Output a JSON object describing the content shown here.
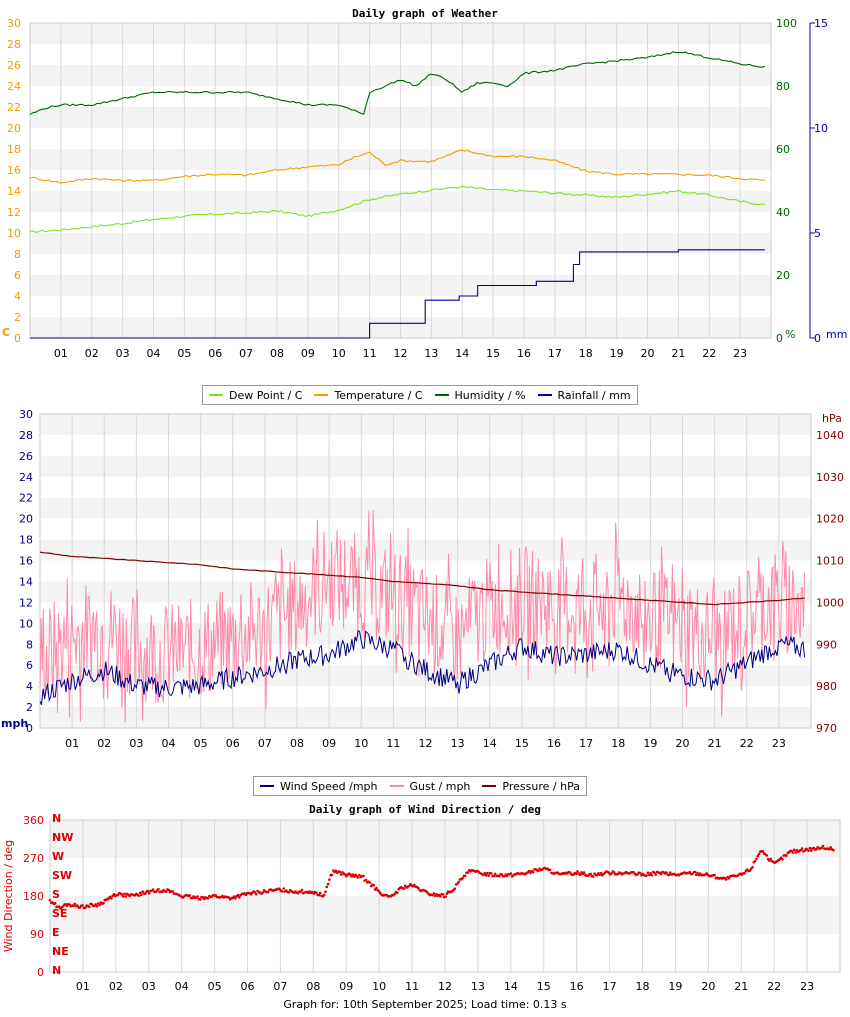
{
  "chart_data": [
    {
      "type": "line",
      "title": "Daily graph of Weather",
      "x_ticks": [
        "01",
        "02",
        "03",
        "04",
        "05",
        "06",
        "07",
        "08",
        "09",
        "10",
        "11",
        "12",
        "13",
        "14",
        "15",
        "16",
        "17",
        "18",
        "19",
        "20",
        "21",
        "22",
        "23"
      ],
      "xlim": [
        0,
        24
      ],
      "left_axis": {
        "unit": "C",
        "range": [
          0,
          30
        ],
        "ticks": [
          "0",
          "2",
          "4",
          "6",
          "8",
          "10",
          "12",
          "14",
          "16",
          "18",
          "20",
          "22",
          "24",
          "26",
          "28",
          "30"
        ],
        "color": "#e6a100"
      },
      "right_axis_1": {
        "unit": "%",
        "range": [
          0,
          100
        ],
        "ticks": [
          "0",
          "20",
          "40",
          "60",
          "80",
          "100"
        ],
        "color": "#006400"
      },
      "right_axis_2": {
        "unit": "mm",
        "range": [
          0,
          15
        ],
        "ticks": [
          "0",
          "5",
          "10",
          "15"
        ],
        "color": "#0000aa"
      },
      "grid": true,
      "legend": [
        "Dew Point / C",
        "Temperature / C",
        "Humidity / %",
        "Rainfall / mm"
      ],
      "series": [
        {
          "name": "Dew Point / C",
          "axis": "left",
          "color": "#80e020",
          "x": [
            0,
            1,
            2,
            3,
            4,
            5,
            6,
            7,
            8,
            9,
            10,
            10.5,
            11,
            12,
            13,
            14,
            15,
            16,
            17,
            18,
            19,
            20,
            21,
            22,
            23,
            23.8
          ],
          "values": [
            10.1,
            10.3,
            10.6,
            10.9,
            11.3,
            11.6,
            11.8,
            11.9,
            12.1,
            11.6,
            12.2,
            12.7,
            13.2,
            13.7,
            14.1,
            14.4,
            14.1,
            14.0,
            13.8,
            13.6,
            13.4,
            13.7,
            14.0,
            13.6,
            13.0,
            12.7
          ]
        },
        {
          "name": "Temperature / C",
          "axis": "left",
          "color": "#f0a000",
          "x": [
            0,
            1,
            2,
            3,
            4,
            5,
            6,
            7,
            8,
            9,
            10,
            10.5,
            11,
            11.5,
            12,
            13,
            14,
            15,
            16,
            17,
            17.5,
            18,
            19,
            20,
            21,
            22,
            23,
            23.8
          ],
          "values": [
            15.3,
            14.8,
            15.2,
            15.0,
            15.0,
            15.4,
            15.6,
            15.5,
            16.0,
            16.3,
            16.5,
            17.2,
            17.7,
            16.5,
            16.9,
            16.8,
            17.9,
            17.3,
            17.3,
            16.9,
            16.4,
            15.9,
            15.6,
            15.6,
            15.6,
            15.5,
            15.2,
            15.0
          ]
        },
        {
          "name": "Humidity / %",
          "axis": "right1",
          "color": "#006400",
          "x": [
            0,
            0.5,
            1,
            2,
            3,
            4,
            5,
            6,
            7,
            8,
            9,
            10,
            10.8,
            11,
            12,
            12.5,
            13,
            13.5,
            14,
            14.5,
            15,
            15.5,
            16,
            17,
            18,
            19,
            20,
            21,
            22,
            23,
            23.8
          ],
          "values": [
            71,
            73,
            74,
            74,
            76,
            78,
            78,
            78,
            78,
            76,
            74,
            74,
            71,
            78,
            82,
            80,
            84,
            82,
            78,
            81,
            81,
            80,
            84,
            85,
            87,
            88,
            89,
            91,
            89,
            87,
            86
          ]
        },
        {
          "name": "Rainfall / mm",
          "axis": "right2",
          "color": "#000099",
          "x": [
            0,
            10.9,
            11,
            12.4,
            12.8,
            13.9,
            14.5,
            16.4,
            17.6,
            17.8,
            20.3,
            21,
            23.8
          ],
          "values": [
            0,
            0,
            0.7,
            0.7,
            1.8,
            2.0,
            2.5,
            2.7,
            3.5,
            4.1,
            4.1,
            4.2,
            4.2
          ]
        }
      ]
    },
    {
      "type": "line",
      "title": "",
      "x_ticks": [
        "01",
        "02",
        "03",
        "04",
        "05",
        "06",
        "07",
        "08",
        "09",
        "10",
        "11",
        "12",
        "13",
        "14",
        "15",
        "16",
        "17",
        "18",
        "19",
        "20",
        "21",
        "22",
        "23"
      ],
      "xlim": [
        0,
        24
      ],
      "left_axis": {
        "unit": "mph",
        "range": [
          0,
          30
        ],
        "ticks": [
          "0",
          "2",
          "4",
          "6",
          "8",
          "10",
          "12",
          "14",
          "16",
          "18",
          "20",
          "22",
          "24",
          "26",
          "28",
          "30"
        ],
        "color": "#000080"
      },
      "right_axis": {
        "unit": "hPa",
        "range": [
          970,
          1045
        ],
        "ticks": [
          "970",
          "980",
          "990",
          "1000",
          "1010",
          "1020",
          "1030",
          "1040"
        ],
        "color": "#800000"
      },
      "grid": true,
      "legend": [
        "Wind Speed /mph",
        "Gust / mph",
        "Pressure / hPa"
      ],
      "series": [
        {
          "name": "Wind Speed /mph",
          "axis": "left",
          "color": "#000080",
          "x": [
            0,
            1,
            2,
            3,
            4,
            5,
            6,
            7,
            8,
            9,
            10,
            11,
            12,
            13,
            14,
            15,
            16,
            17,
            18,
            19,
            20,
            21,
            22,
            23,
            23.8
          ],
          "values": [
            3,
            4.5,
            5.5,
            4,
            3.8,
            4,
            4.8,
            5.5,
            6.5,
            7,
            8.5,
            7.5,
            5.5,
            4.2,
            6,
            7.8,
            6.8,
            7,
            7.5,
            6,
            5,
            4.5,
            6.2,
            8,
            7.5
          ]
        },
        {
          "name": "Gust / mph",
          "axis": "left",
          "color": "#ff8aa8",
          "x": [
            0,
            1,
            2,
            3,
            4,
            5,
            6,
            7,
            8,
            9,
            10,
            11,
            12,
            13,
            14,
            15,
            16,
            17,
            18,
            19,
            20,
            21,
            22,
            23,
            23.8
          ],
          "values": [
            7,
            9,
            10,
            8,
            7.5,
            8,
            9,
            10,
            12,
            15,
            14,
            13,
            11,
            9,
            12,
            13,
            12,
            12,
            13,
            11,
            10,
            9,
            11,
            13,
            12
          ]
        },
        {
          "name": "Pressure / hPa",
          "axis": "right",
          "color": "#800000",
          "x": [
            0,
            1,
            2,
            3,
            4,
            5,
            6,
            7,
            8,
            9,
            10,
            11,
            12,
            13,
            14,
            15,
            16,
            17,
            18,
            19,
            20,
            21,
            22,
            23,
            23.8
          ],
          "values": [
            1012,
            1011,
            1010.5,
            1010,
            1009.5,
            1009,
            1008,
            1007.5,
            1007,
            1006.5,
            1006,
            1005,
            1004.5,
            1004,
            1003,
            1002.5,
            1002,
            1001.5,
            1001,
            1000.5,
            1000,
            999.5,
            1000,
            1000.5,
            1001
          ]
        }
      ]
    },
    {
      "type": "scatter",
      "title": "Daily graph of Wind Direction / deg",
      "x_ticks": [
        "01",
        "02",
        "03",
        "04",
        "05",
        "06",
        "07",
        "08",
        "09",
        "10",
        "11",
        "12",
        "13",
        "14",
        "15",
        "16",
        "17",
        "18",
        "19",
        "20",
        "21",
        "22",
        "23"
      ],
      "xlim": [
        0,
        24
      ],
      "ylabel": "Wind Direction / deg",
      "ylim": [
        0,
        360
      ],
      "y_ticks": [
        "0",
        "90",
        "180",
        "270",
        "360"
      ],
      "compass": [
        "N",
        "NE",
        "E",
        "SE",
        "S",
        "SW",
        "W",
        "NW",
        "N"
      ],
      "grid": true,
      "color": "#dd0000",
      "series": [
        {
          "name": "",
          "x": [
            0,
            0.3,
            0.5,
            1,
            1.5,
            2,
            2.5,
            3,
            3.5,
            4,
            4.5,
            5,
            5.5,
            6,
            6.5,
            7,
            7.5,
            8,
            8.3,
            8.6,
            9,
            9.5,
            10,
            10.3,
            10.7,
            11,
            11.5,
            12,
            12.3,
            12.7,
            13,
            13.5,
            14,
            14.5,
            15,
            15.5,
            16,
            16.5,
            17,
            17.5,
            18,
            18.5,
            19,
            19.5,
            20,
            20.5,
            21,
            21.3,
            21.6,
            22,
            22.5,
            23,
            23.5,
            23.8
          ],
          "values": [
            170,
            150,
            160,
            155,
            160,
            185,
            180,
            190,
            195,
            180,
            175,
            180,
            175,
            185,
            190,
            195,
            190,
            190,
            180,
            240,
            230,
            225,
            190,
            175,
            200,
            205,
            185,
            180,
            200,
            240,
            235,
            230,
            230,
            235,
            245,
            230,
            235,
            230,
            235,
            235,
            230,
            235,
            230,
            235,
            230,
            220,
            230,
            245,
            290,
            255,
            285,
            290,
            295,
            290
          ]
        }
      ]
    }
  ],
  "footer": "Graph for: 10th September 2025; Load time: 0.13 s"
}
